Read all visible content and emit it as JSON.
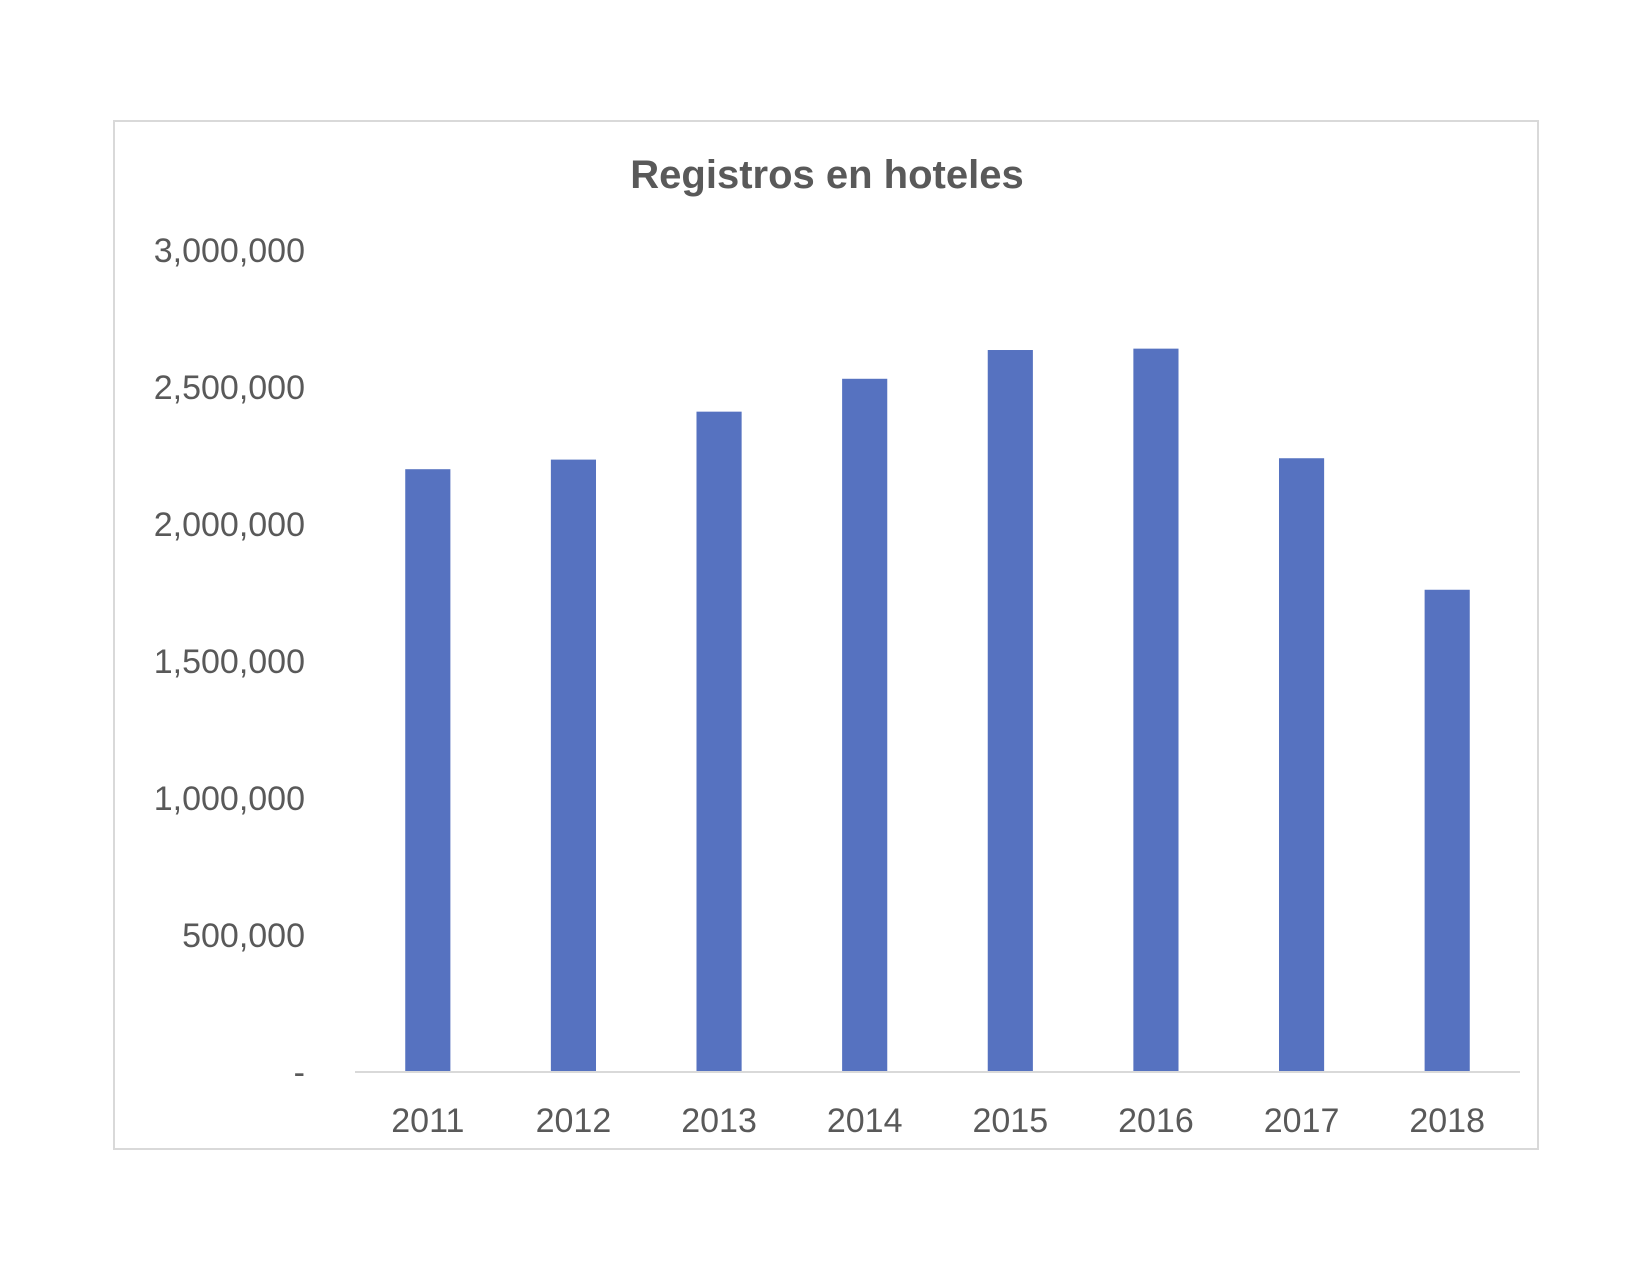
{
  "chart_data": {
    "type": "bar",
    "title": "Registros en hoteles",
    "xlabel": "",
    "ylabel": "",
    "categories": [
      "2011",
      "2012",
      "2013",
      "2014",
      "2015",
      "2016",
      "2017",
      "2018"
    ],
    "values": [
      2200000,
      2235000,
      2410000,
      2530000,
      2635000,
      2640000,
      2240000,
      1760000
    ],
    "ylim": [
      0,
      3000000
    ],
    "y_ticks": [
      0,
      500000,
      1000000,
      1500000,
      2000000,
      2500000,
      3000000
    ],
    "y_tick_labels": [
      "-",
      "500,000",
      "1,000,000",
      "1,500,000",
      "2,000,000",
      "2,500,000",
      "3,000,000"
    ],
    "grid": false,
    "legend": "none",
    "colors": {
      "bar": "#5672C0",
      "text": "#595959",
      "axis": "#d9d9d9"
    }
  }
}
